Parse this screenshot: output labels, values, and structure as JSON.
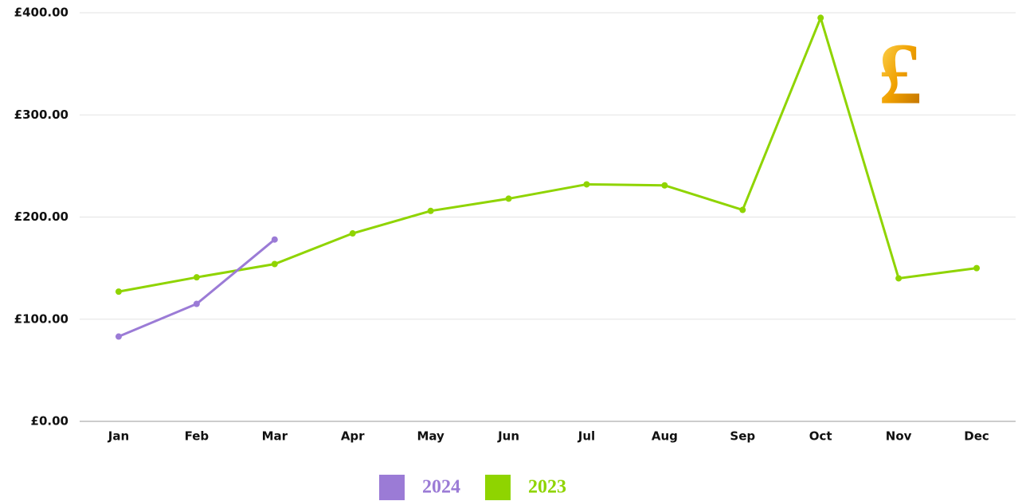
{
  "chart_data": {
    "type": "line",
    "categories": [
      "Jan",
      "Feb",
      "Mar",
      "Apr",
      "May",
      "Jun",
      "Jul",
      "Aug",
      "Sep",
      "Oct",
      "Nov",
      "Dec"
    ],
    "series": [
      {
        "name": "2024",
        "color": "#9b7bd6",
        "values": [
          83,
          115,
          178,
          null,
          null,
          null,
          null,
          null,
          null,
          null,
          null,
          null
        ]
      },
      {
        "name": "2023",
        "color": "#8fd400",
        "values": [
          127,
          141,
          154,
          184,
          206,
          218,
          232,
          231,
          207,
          395,
          140,
          150
        ]
      }
    ],
    "ylim": [
      0,
      400
    ],
    "yticks": [
      {
        "value": 0,
        "label": "£0.00"
      },
      {
        "value": 100,
        "label": "£100.00"
      },
      {
        "value": 200,
        "label": "£200.00"
      },
      {
        "value": 300,
        "label": "£300.00"
      },
      {
        "value": 400,
        "label": "£400.00"
      }
    ],
    "grid": true,
    "annotation": "£"
  }
}
